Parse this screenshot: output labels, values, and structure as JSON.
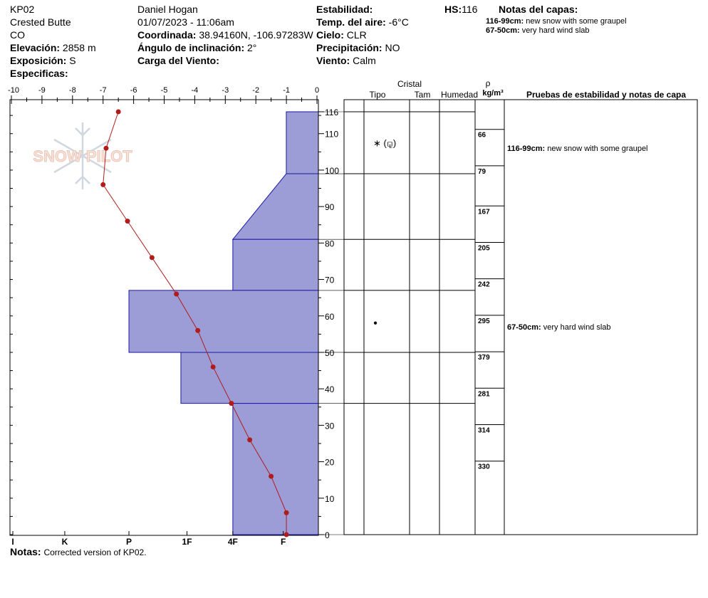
{
  "header": {
    "site_id": "KP02",
    "location": "Crested Butte",
    "state": "CO",
    "elevation_label": "Elevación:",
    "elevation_value": "2858 m",
    "aspect_label": "Exposición:",
    "aspect_value": "S",
    "specifics_label": "Especificas:",
    "observer": "Daniel Hogan",
    "datetime": "01/07/2023 - 11:06am",
    "coord_label": "Coordinada:",
    "coord_value": "38.94160N, -106.97283W",
    "slope_label": "Ángulo de inclinación:",
    "slope_value": "2°",
    "wind_load_label": "Carga del Viento:",
    "wind_load_value": "",
    "stability_label": "Estabilidad:",
    "stability_value": "",
    "air_temp_label": "Temp. del aire:",
    "air_temp_value": "-6°C",
    "sky_label": "Cielo:",
    "sky_value": "CLR",
    "precip_label": "Precipitación:",
    "precip_value": "NO",
    "wind_label": "Viento:",
    "wind_value": "Calm",
    "hs_label": "HS:",
    "hs_value": "116",
    "layer_notes_title": "Notas del capas:",
    "layer_notes": [
      {
        "range": "116-99cm:",
        "text": "new snow with some graupel"
      },
      {
        "range": "67-50cm:",
        "text": "very hard wind slab"
      }
    ]
  },
  "columns": {
    "crystal": "Cristal",
    "type": "Tipo",
    "size": "Tam",
    "moisture": "Humedad",
    "rho": "ρ",
    "density_unit": "kg/m³",
    "tests": "Pruebas de estabilidad y notas de capa"
  },
  "watermark": "SNOW PILOT",
  "footer": {
    "notes_label": "Notas:",
    "notes_text": "Corrected version of KP02."
  },
  "colors": {
    "hardness_fill": "#9c9cd6",
    "hardness_stroke": "#1a1aa6",
    "temp_line": "#b01c1c"
  },
  "chart_data": {
    "type": "snow-profile",
    "temperature_axis": {
      "ticks": [
        -10,
        -9,
        -8,
        -7,
        -6,
        -5,
        -4,
        -3,
        -2,
        -1,
        0
      ],
      "range": [
        -10,
        0
      ],
      "unit": "°C"
    },
    "height_axis": {
      "ticks": [
        0,
        10,
        20,
        30,
        40,
        50,
        60,
        70,
        80,
        90,
        100,
        110,
        116
      ],
      "range": [
        0,
        116
      ],
      "unit": "cm"
    },
    "hardness_axis": {
      "labels": [
        "I",
        "K",
        "P",
        "1F",
        "4F",
        "F"
      ]
    },
    "hardness_layers": [
      {
        "top": 116,
        "bottom": 99,
        "top_hardness": 1.05,
        "bottom_hardness": 1.05
      },
      {
        "top": 99,
        "bottom": 81,
        "top_hardness": 1.05,
        "bottom_hardness": 2.8
      },
      {
        "top": 81,
        "bottom": 67,
        "top_hardness": 2.8,
        "bottom_hardness": 2.8
      },
      {
        "top": 67,
        "bottom": 50,
        "top_hardness": 6.2,
        "bottom_hardness": 6.2
      },
      {
        "top": 50,
        "bottom": 36,
        "top_hardness": 4.5,
        "bottom_hardness": 4.5
      },
      {
        "top": 36,
        "bottom": 0,
        "top_hardness": 2.8,
        "bottom_hardness": 2.8
      }
    ],
    "temperature_profile": [
      {
        "h": 116,
        "t": -6.5
      },
      {
        "h": 106,
        "t": -6.9
      },
      {
        "h": 96,
        "t": -7.0
      },
      {
        "h": 86,
        "t": -6.2
      },
      {
        "h": 76,
        "t": -5.4
      },
      {
        "h": 66,
        "t": -4.6
      },
      {
        "h": 56,
        "t": -3.9
      },
      {
        "h": 46,
        "t": -3.4
      },
      {
        "h": 36,
        "t": -2.8
      },
      {
        "h": 26,
        "t": -2.2
      },
      {
        "h": 16,
        "t": -1.5
      },
      {
        "h": 6,
        "t": -1.0
      },
      {
        "h": 0,
        "t": -1.0
      }
    ],
    "layer_boundaries": [
      116,
      99,
      81,
      67,
      50,
      36,
      0
    ],
    "grain_symbols": [
      {
        "height": 107.5,
        "symbol": "∗ (⚼)"
      },
      {
        "height": 58.5,
        "symbol": "●"
      }
    ],
    "densities": [
      {
        "height": 110,
        "value": "66"
      },
      {
        "height": 100,
        "value": "79"
      },
      {
        "height": 89,
        "value": "167"
      },
      {
        "height": 79,
        "value": "205"
      },
      {
        "height": 69,
        "value": "242"
      },
      {
        "height": 59,
        "value": "295"
      },
      {
        "height": 49,
        "value": "379"
      },
      {
        "height": 39,
        "value": "281"
      },
      {
        "height": 29,
        "value": "314"
      },
      {
        "height": 19,
        "value": "330"
      }
    ],
    "notes_rows": [
      {
        "height": 106,
        "range": "116-99cm:",
        "text": "new snow with some graupel"
      },
      {
        "height": 57,
        "range": "67-50cm:",
        "text": "very hard wind slab"
      }
    ]
  }
}
